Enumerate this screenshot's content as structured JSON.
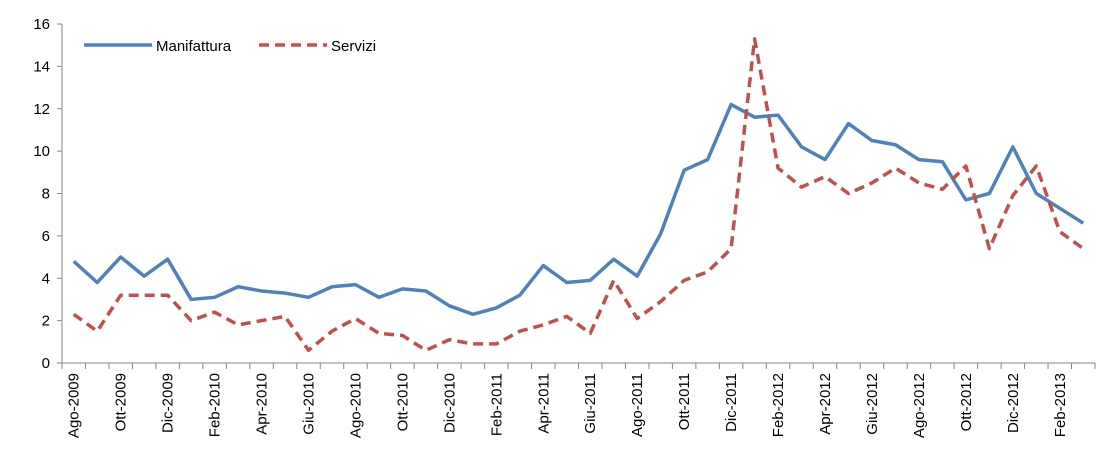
{
  "chart_data": {
    "type": "line",
    "categories": [
      "Ago-2009",
      null,
      "Ott-2009",
      null,
      "Dic-2009",
      null,
      "Feb-2010",
      null,
      "Apr-2010",
      null,
      "Giu-2010",
      null,
      "Ago-2010",
      null,
      "Ott-2010",
      null,
      "Dic-2010",
      null,
      "Feb-2011",
      null,
      "Apr-2011",
      null,
      "Giu-2011",
      null,
      "Ago-2011",
      null,
      "Ott-2011",
      null,
      "Dic-2011",
      null,
      "Feb-2012",
      null,
      "Apr-2012",
      null,
      "Giu-2012",
      null,
      "Ago-2012",
      null,
      "Ott-2012",
      null,
      "Dic-2012",
      null,
      "Feb-2013",
      null
    ],
    "series": [
      {
        "name": "Manifattura",
        "color": "#4f81bd",
        "dash": "solid",
        "values": [
          4.8,
          3.8,
          5.0,
          4.1,
          4.9,
          3.0,
          3.1,
          3.6,
          3.4,
          3.3,
          3.1,
          3.6,
          3.7,
          3.1,
          3.5,
          3.4,
          2.7,
          2.3,
          2.6,
          3.2,
          4.6,
          3.8,
          3.9,
          4.9,
          4.1,
          6.1,
          9.1,
          9.6,
          12.2,
          11.6,
          11.7,
          10.2,
          9.6,
          11.3,
          10.5,
          10.3,
          9.6,
          9.5,
          7.7,
          8.0,
          10.2,
          8.0,
          7.3,
          6.6
        ]
      },
      {
        "name": "Servizi",
        "color": "#c0504d",
        "dash": "dashed",
        "values": [
          2.3,
          1.5,
          3.2,
          3.2,
          3.2,
          2.0,
          2.4,
          1.8,
          2.0,
          2.2,
          0.6,
          1.5,
          2.1,
          1.4,
          1.3,
          0.6,
          1.1,
          0.9,
          0.9,
          1.5,
          1.8,
          2.2,
          1.4,
          3.9,
          2.1,
          2.9,
          3.9,
          4.3,
          5.4,
          15.3,
          9.2,
          8.3,
          8.8,
          8.0,
          8.5,
          9.2,
          8.5,
          8.2,
          9.3,
          5.4,
          7.9,
          9.3,
          6.2,
          5.4
        ]
      }
    ],
    "ylim": [
      0,
      16
    ],
    "yticks": [
      0,
      2,
      4,
      6,
      8,
      10,
      12,
      14,
      16
    ],
    "grid": false,
    "legend": "upper left"
  }
}
